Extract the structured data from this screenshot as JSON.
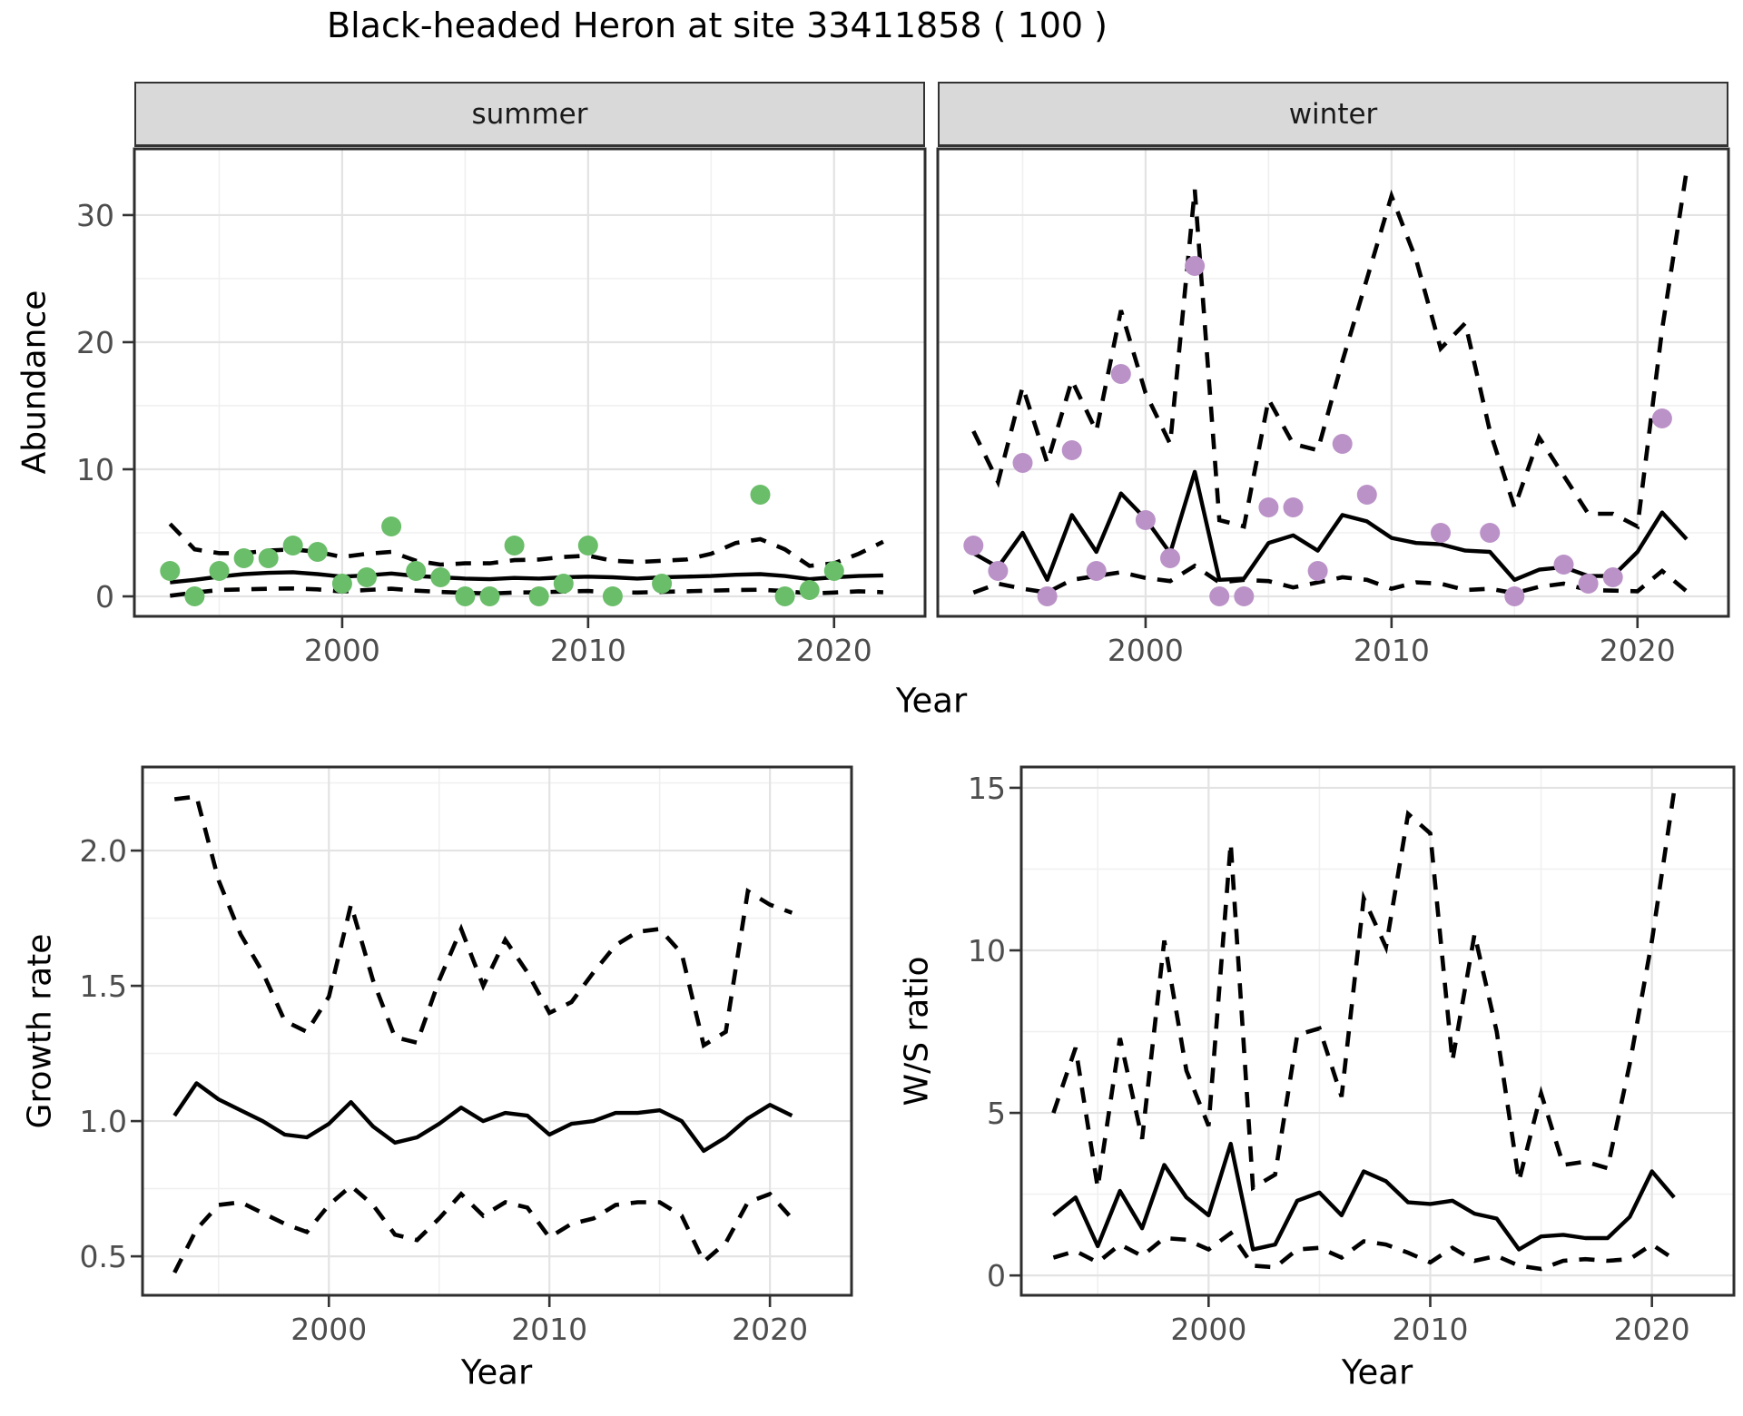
{
  "figure": {
    "title": "Black-headed Heron at site 33411858 ( 100 )",
    "x_axis_title": "Year",
    "colors": {
      "summer_points": "#6abd69",
      "winter_points": "#bb92c8",
      "line": "#000000",
      "grid_major": "#e3e3e3",
      "grid_minor": "#f0f0f0",
      "panel_border": "#2e2e2e",
      "strip_fill": "#d9d9d9",
      "tick_label": "#4d4d4d",
      "background": "#ffffff"
    }
  },
  "chart_data": [
    {
      "id": "abundance-summer",
      "type": "scatter",
      "facet": "summer",
      "xlabel": "Year",
      "ylabel": "Abundance",
      "xlim": [
        1991.55,
        2023.7
      ],
      "ylim": [
        -1.57,
        35.21
      ],
      "xticks": [
        2000,
        2010,
        2020
      ],
      "xtick_labels": [
        "2000",
        "2010",
        "2020"
      ],
      "xticks_minor": [
        1995,
        2005,
        2015
      ],
      "yticks": [
        0,
        10,
        20,
        30
      ],
      "ytick_labels": [
        "0",
        "10",
        "20",
        "30"
      ],
      "yticks_minor": [
        5,
        15,
        25
      ],
      "point_color": "#6abd69",
      "points": {
        "years": [
          1993,
          1994,
          1995,
          1996,
          1997,
          1998,
          1999,
          2000,
          2001,
          2002,
          2003,
          2004,
          2005,
          2006,
          2007,
          2008,
          2009,
          2010,
          2011,
          2013,
          2017,
          2018,
          2019,
          2020
        ],
        "abundance": [
          2,
          0,
          2,
          3,
          3,
          4,
          3.5,
          1,
          1.5,
          5.5,
          2,
          1.5,
          0,
          0,
          4,
          0,
          1,
          4,
          0,
          1,
          8,
          0,
          0.5,
          2
        ]
      },
      "fit_line": {
        "years": [
          1993,
          1994,
          1995,
          1996,
          1997,
          1998,
          1999,
          2000,
          2001,
          2002,
          2003,
          2004,
          2005,
          2006,
          2007,
          2008,
          2009,
          2010,
          2011,
          2012,
          2013,
          2014,
          2015,
          2016,
          2017,
          2018,
          2019,
          2020,
          2021,
          2022
        ],
        "values": [
          1.1,
          1.3,
          1.55,
          1.75,
          1.85,
          1.9,
          1.75,
          1.55,
          1.65,
          1.8,
          1.6,
          1.5,
          1.4,
          1.35,
          1.45,
          1.4,
          1.5,
          1.55,
          1.5,
          1.4,
          1.5,
          1.55,
          1.6,
          1.7,
          1.75,
          1.6,
          1.35,
          1.5,
          1.6,
          1.65
        ]
      },
      "ci_upper": {
        "years": [
          1993,
          1994,
          1995,
          1996,
          1997,
          1998,
          1999,
          2000,
          2001,
          2002,
          2003,
          2004,
          2005,
          2006,
          2007,
          2008,
          2009,
          2010,
          2011,
          2012,
          2013,
          2014,
          2015,
          2016,
          2017,
          2018,
          2019,
          2020,
          2021,
          2022
        ],
        "values": [
          5.7,
          3.7,
          3.4,
          3.4,
          3.6,
          3.7,
          3.5,
          3.1,
          3.35,
          3.5,
          2.8,
          2.5,
          2.6,
          2.6,
          2.85,
          2.9,
          3.1,
          3.2,
          2.8,
          2.7,
          2.8,
          2.9,
          3.35,
          4.2,
          4.5,
          3.7,
          2.4,
          2.6,
          3.35,
          4.3
        ]
      },
      "ci_lower": {
        "years": [
          1993,
          1994,
          1995,
          1996,
          1997,
          1998,
          1999,
          2000,
          2001,
          2002,
          2003,
          2004,
          2005,
          2006,
          2007,
          2008,
          2009,
          2010,
          2011,
          2012,
          2013,
          2014,
          2015,
          2016,
          2017,
          2018,
          2019,
          2020,
          2021,
          2022
        ],
        "values": [
          0.05,
          0.3,
          0.5,
          0.55,
          0.6,
          0.62,
          0.55,
          0.38,
          0.5,
          0.6,
          0.45,
          0.35,
          0.28,
          0.22,
          0.3,
          0.32,
          0.38,
          0.42,
          0.32,
          0.3,
          0.35,
          0.4,
          0.45,
          0.5,
          0.52,
          0.42,
          0.22,
          0.3,
          0.4,
          0.32
        ]
      }
    },
    {
      "id": "abundance-winter",
      "type": "scatter",
      "facet": "winter",
      "xlabel": "Year",
      "ylabel": "Abundance",
      "xlim": [
        1991.55,
        2023.7
      ],
      "ylim": [
        -1.57,
        35.21
      ],
      "xticks": [
        2000,
        2010,
        2020
      ],
      "xtick_labels": [
        "2000",
        "2010",
        "2020"
      ],
      "xticks_minor": [
        1995,
        2005,
        2015
      ],
      "yticks": [
        0,
        10,
        20,
        30
      ],
      "ytick_labels": [
        "0",
        "10",
        "20",
        "30"
      ],
      "yticks_minor": [
        5,
        15,
        25
      ],
      "point_color": "#bb92c8",
      "points": {
        "years": [
          1993,
          1994,
          1995,
          1996,
          1997,
          1998,
          1999,
          2000,
          2001,
          2002,
          2003,
          2004,
          2005,
          2006,
          2007,
          2008,
          2009,
          2012,
          2014,
          2015,
          2017,
          2018,
          2019,
          2021
        ],
        "abundance": [
          4,
          2,
          10.5,
          0,
          11.5,
          2,
          17.5,
          6,
          3,
          26,
          0,
          0,
          7,
          7,
          2,
          12,
          8,
          5,
          5,
          0,
          2.5,
          1,
          1.5,
          14
        ]
      },
      "fit_line": {
        "years": [
          1993,
          1994,
          1995,
          1996,
          1997,
          1998,
          1999,
          2000,
          2001,
          2002,
          2003,
          2004,
          2005,
          2006,
          2007,
          2008,
          2009,
          2010,
          2011,
          2012,
          2013,
          2014,
          2015,
          2016,
          2017,
          2018,
          2019,
          2020,
          2021,
          2022
        ],
        "values": [
          3.4,
          2.3,
          5.0,
          1.3,
          6.4,
          3.5,
          8.1,
          6.1,
          3.4,
          9.8,
          1.3,
          1.4,
          4.2,
          4.8,
          3.6,
          6.4,
          5.9,
          4.6,
          4.2,
          4.1,
          3.6,
          3.5,
          1.3,
          2.1,
          2.3,
          1.6,
          1.6,
          3.5,
          6.6,
          4.5
        ]
      },
      "ci_upper": {
        "years": [
          1993,
          1994,
          1995,
          1996,
          1997,
          1998,
          1999,
          2000,
          2001,
          2002,
          2003,
          2004,
          2005,
          2006,
          2007,
          2008,
          2009,
          2010,
          2011,
          2012,
          2013,
          2014,
          2015,
          2016,
          2017,
          2018,
          2019,
          2020,
          2021,
          2022
        ],
        "values": [
          13,
          9,
          16.5,
          10.5,
          17,
          13,
          22.5,
          16,
          12,
          32,
          6,
          5.5,
          15.5,
          12,
          11.5,
          18.5,
          25,
          31.5,
          26.5,
          19.5,
          21.5,
          13,
          7,
          12.5,
          9.5,
          6.5,
          6.5,
          5.5,
          21,
          33.5
        ]
      },
      "ci_lower": {
        "years": [
          1993,
          1994,
          1995,
          1996,
          1997,
          1998,
          1999,
          2000,
          2001,
          2002,
          2003,
          2004,
          2005,
          2006,
          2007,
          2008,
          2009,
          2010,
          2011,
          2012,
          2013,
          2014,
          2015,
          2016,
          2017,
          2018,
          2019,
          2020,
          2021,
          2022
        ],
        "values": [
          0.3,
          1.0,
          0.6,
          0.3,
          1.3,
          1.6,
          1.9,
          1.45,
          1.2,
          2.4,
          1.1,
          1.3,
          1.2,
          0.7,
          1.1,
          1.5,
          1.3,
          0.6,
          1.1,
          1.0,
          0.5,
          0.6,
          0.25,
          0.75,
          1.0,
          0.5,
          0.45,
          0.4,
          2.0,
          0.4
        ]
      }
    },
    {
      "id": "growth-rate",
      "type": "line",
      "facet": null,
      "xlabel": "Year",
      "ylabel": "Growth rate",
      "xlim": [
        1991.55,
        2023.7
      ],
      "ylim": [
        0.356,
        2.309
      ],
      "xticks": [
        2000,
        2010,
        2020
      ],
      "xtick_labels": [
        "2000",
        "2010",
        "2020"
      ],
      "xticks_minor": [
        1995,
        2005,
        2015
      ],
      "yticks": [
        0.5,
        1.0,
        1.5,
        2.0
      ],
      "ytick_labels": [
        "0.5",
        "1.0",
        "1.5",
        "2.0"
      ],
      "yticks_minor": [
        0.75,
        1.25,
        1.75,
        2.25
      ],
      "fit_line": {
        "years": [
          1993,
          1994,
          1995,
          1996,
          1997,
          1998,
          1999,
          2000,
          2001,
          2002,
          2003,
          2004,
          2005,
          2006,
          2007,
          2008,
          2009,
          2010,
          2011,
          2012,
          2013,
          2014,
          2015,
          2016,
          2017,
          2018,
          2019,
          2020,
          2021
        ],
        "values": [
          1.02,
          1.14,
          1.08,
          1.04,
          1.0,
          0.95,
          0.94,
          0.99,
          1.07,
          0.98,
          0.92,
          0.94,
          0.99,
          1.05,
          1.0,
          1.03,
          1.02,
          0.95,
          0.99,
          1.0,
          1.03,
          1.03,
          1.04,
          1.0,
          0.89,
          0.94,
          1.01,
          1.06,
          1.02
        ]
      },
      "ci_upper": {
        "years": [
          1993,
          1994,
          1995,
          1996,
          1997,
          1998,
          1999,
          2000,
          2001,
          2002,
          2003,
          2004,
          2005,
          2006,
          2007,
          2008,
          2009,
          2010,
          2011,
          2012,
          2013,
          2014,
          2015,
          2016,
          2017,
          2018,
          2019,
          2020,
          2021
        ],
        "values": [
          2.19,
          2.2,
          1.89,
          1.69,
          1.55,
          1.37,
          1.33,
          1.46,
          1.8,
          1.52,
          1.31,
          1.29,
          1.52,
          1.71,
          1.5,
          1.67,
          1.55,
          1.4,
          1.44,
          1.55,
          1.65,
          1.7,
          1.71,
          1.62,
          1.28,
          1.33,
          1.85,
          1.8,
          1.77
        ]
      },
      "ci_lower": {
        "years": [
          1993,
          1994,
          1995,
          1996,
          1997,
          1998,
          1999,
          2000,
          2001,
          2002,
          2003,
          2004,
          2005,
          2006,
          2007,
          2008,
          2009,
          2010,
          2011,
          2012,
          2013,
          2014,
          2015,
          2016,
          2017,
          2018,
          2019,
          2020,
          2021
        ],
        "values": [
          0.44,
          0.6,
          0.69,
          0.7,
          0.66,
          0.62,
          0.59,
          0.69,
          0.76,
          0.69,
          0.58,
          0.56,
          0.64,
          0.73,
          0.65,
          0.7,
          0.68,
          0.57,
          0.62,
          0.64,
          0.69,
          0.7,
          0.7,
          0.65,
          0.48,
          0.55,
          0.7,
          0.73,
          0.64
        ]
      }
    },
    {
      "id": "ws-ratio",
      "type": "line",
      "facet": null,
      "xlabel": "Year",
      "ylabel": "W/S ratio",
      "xlim": [
        1991.55,
        2023.7
      ],
      "ylim": [
        -0.61,
        15.64
      ],
      "xticks": [
        2000,
        2010,
        2020
      ],
      "xtick_labels": [
        "2000",
        "2010",
        "2020"
      ],
      "xticks_minor": [
        1995,
        2005,
        2015
      ],
      "yticks": [
        0,
        5,
        10,
        15
      ],
      "ytick_labels": [
        "0",
        "5",
        "10",
        "15"
      ],
      "yticks_minor": [
        2.5,
        7.5,
        12.5
      ],
      "fit_line": {
        "years": [
          1993,
          1994,
          1995,
          1996,
          1997,
          1998,
          1999,
          2000,
          2001,
          2002,
          2003,
          2004,
          2005,
          2006,
          2007,
          2008,
          2009,
          2010,
          2011,
          2012,
          2013,
          2014,
          2015,
          2016,
          2017,
          2018,
          2019,
          2020,
          2021
        ],
        "values": [
          1.85,
          2.4,
          0.9,
          2.6,
          1.45,
          3.4,
          2.4,
          1.85,
          4.05,
          0.8,
          0.95,
          2.3,
          2.55,
          1.85,
          3.2,
          2.9,
          2.25,
          2.2,
          2.3,
          1.9,
          1.75,
          0.8,
          1.2,
          1.25,
          1.15,
          1.15,
          1.8,
          3.2,
          2.4
        ]
      },
      "ci_upper": {
        "years": [
          1993,
          1994,
          1995,
          1996,
          1997,
          1998,
          1999,
          2000,
          2001,
          2002,
          2003,
          2004,
          2005,
          2006,
          2007,
          2008,
          2009,
          2010,
          2011,
          2012,
          2013,
          2014,
          2015,
          2016,
          2017,
          2018,
          2019,
          2020,
          2021
        ],
        "values": [
          5.0,
          7.0,
          2.7,
          7.3,
          4.2,
          10.3,
          6.3,
          4.6,
          13.3,
          2.7,
          3.1,
          7.4,
          7.6,
          5.5,
          11.6,
          10.1,
          14.2,
          13.6,
          6.6,
          10.5,
          7.5,
          2.9,
          5.6,
          3.4,
          3.5,
          3.3,
          6.5,
          10.3,
          14.9
        ]
      },
      "ci_lower": {
        "years": [
          1993,
          1994,
          1995,
          1996,
          1997,
          1998,
          1999,
          2000,
          2001,
          2002,
          2003,
          2004,
          2005,
          2006,
          2007,
          2008,
          2009,
          2010,
          2011,
          2012,
          2013,
          2014,
          2015,
          2016,
          2017,
          2018,
          2019,
          2020,
          2021
        ],
        "values": [
          0.55,
          0.75,
          0.4,
          0.95,
          0.6,
          1.15,
          1.1,
          0.8,
          1.3,
          0.3,
          0.25,
          0.8,
          0.85,
          0.55,
          1.05,
          0.95,
          0.7,
          0.4,
          0.85,
          0.45,
          0.6,
          0.3,
          0.2,
          0.45,
          0.5,
          0.45,
          0.5,
          0.95,
          0.5
        ]
      }
    }
  ]
}
